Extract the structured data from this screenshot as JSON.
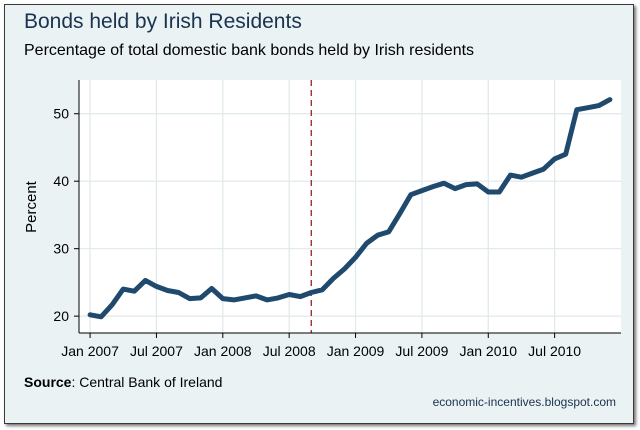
{
  "chart_data": {
    "type": "line",
    "title": "Bonds held by Irish Residents",
    "subtitle": "Percentage of total domestic bank bonds held by Irish residents",
    "xlabel": "",
    "ylabel": "Percent",
    "ylim": [
      17.5,
      55
    ],
    "yticks": [
      20,
      30,
      40,
      50
    ],
    "x_tick_labels": [
      "Jan 2007",
      "Jul 2007",
      "Jan 2008",
      "Jul 2008",
      "Jan 2009",
      "Jul 2009",
      "Jan 2010",
      "Jul 2010"
    ],
    "x_tick_dates": [
      "2007-01",
      "2007-07",
      "2008-01",
      "2008-07",
      "2009-01",
      "2009-07",
      "2010-01",
      "2010-07"
    ],
    "xlim": [
      "2006-12",
      "2011-01"
    ],
    "grid": true,
    "reference_line": {
      "x": "2008-09",
      "style": "dashed",
      "color": "#a0303a"
    },
    "series": [
      {
        "color": "#1f4a6e",
        "x": [
          "2007-01",
          "2007-02",
          "2007-03",
          "2007-04",
          "2007-05",
          "2007-06",
          "2007-07",
          "2007-08",
          "2007-09",
          "2007-10",
          "2007-11",
          "2007-12",
          "2008-01",
          "2008-02",
          "2008-03",
          "2008-04",
          "2008-05",
          "2008-06",
          "2008-07",
          "2008-08",
          "2008-09",
          "2008-10",
          "2008-11",
          "2008-12",
          "2009-01",
          "2009-02",
          "2009-03",
          "2009-04",
          "2009-05",
          "2009-06",
          "2009-07",
          "2009-08",
          "2009-09",
          "2009-10",
          "2009-11",
          "2009-12",
          "2010-01",
          "2010-02",
          "2010-03",
          "2010-04",
          "2010-05",
          "2010-06",
          "2010-07",
          "2010-08",
          "2010-09",
          "2010-10",
          "2010-11",
          "2010-12"
        ],
        "values": [
          20.2,
          19.9,
          21.7,
          24.0,
          23.7,
          25.3,
          24.4,
          23.8,
          23.5,
          22.6,
          22.7,
          24.1,
          22.6,
          22.4,
          22.7,
          23.0,
          22.4,
          22.7,
          23.2,
          22.9,
          23.5,
          23.9,
          25.6,
          27.0,
          28.7,
          30.8,
          32.0,
          32.5,
          35.2,
          38.0,
          38.6,
          39.2,
          39.7,
          38.9,
          39.5,
          39.6,
          38.4,
          38.4,
          40.9,
          40.6,
          41.2,
          41.8,
          43.3,
          44.0,
          50.6,
          50.9,
          51.2,
          52.1
        ]
      }
    ]
  },
  "footer": {
    "source_label": "Source",
    "source_text": ": Central Bank of Ireland",
    "credit": "economic-incentives.blogspot.com"
  },
  "colors": {
    "background": "#eaf2f3",
    "plot_area": "#ffffff",
    "grid": "#dfe8ea",
    "line": "#1f4a6e",
    "title": "#1a3350"
  }
}
